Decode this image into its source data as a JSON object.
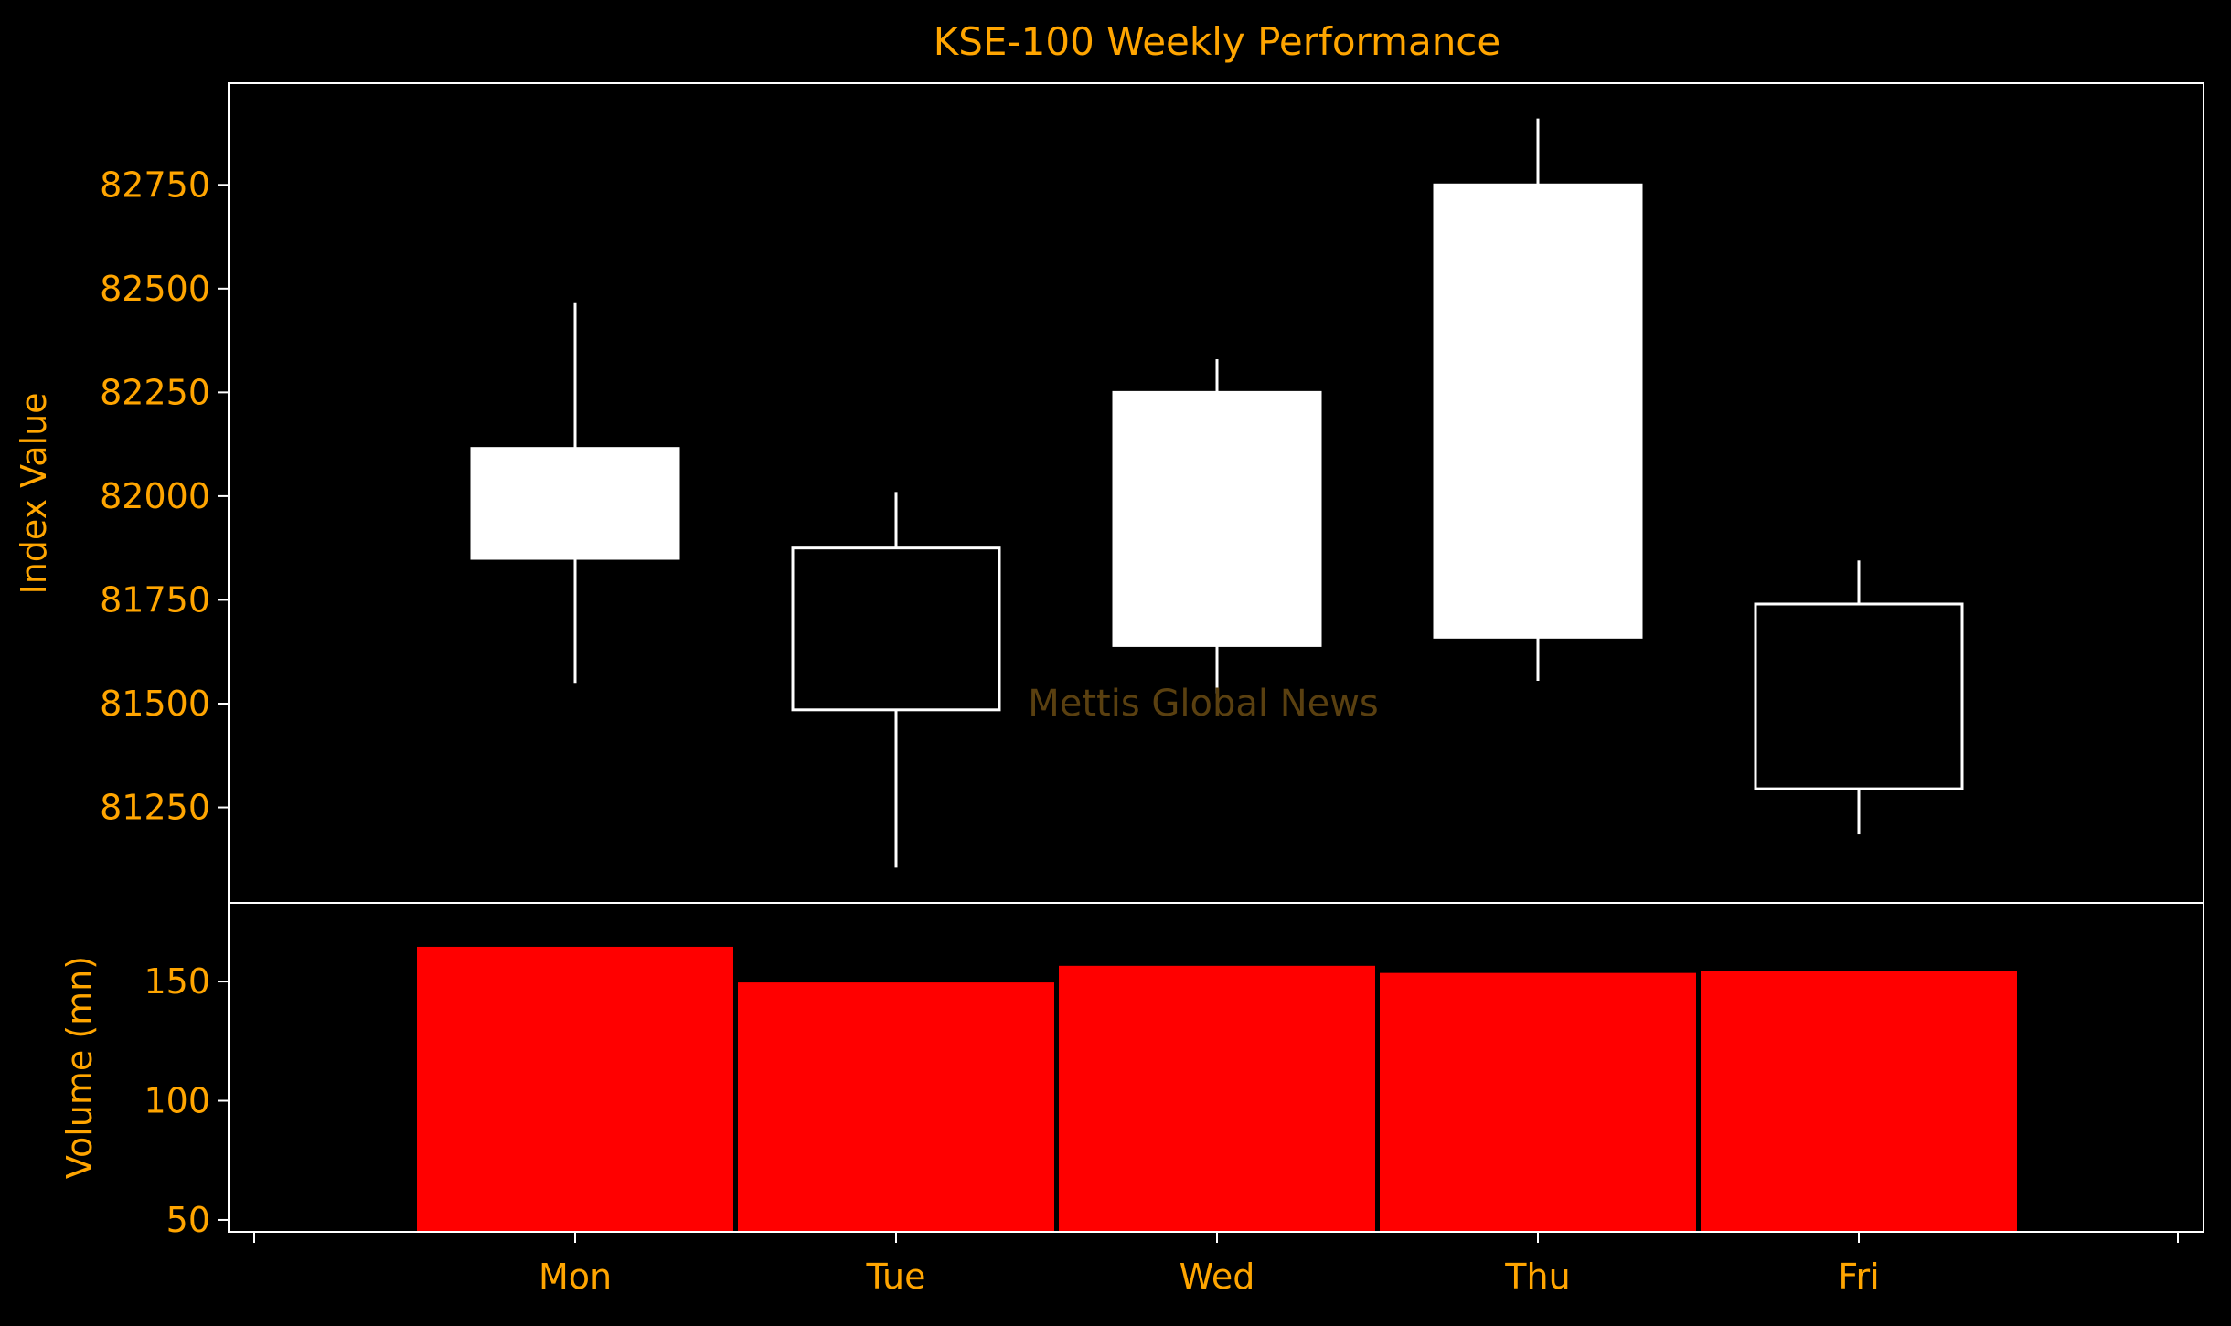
{
  "colors": {
    "background": "#000000",
    "text": "#FFA500",
    "frame": "#FFFFFF",
    "candle_outline": "#FFFFFF",
    "candle_fill_up": "#FFFFFF",
    "candle_fill_down": "#000000",
    "volume_bar": "#FF0000",
    "volume_edge": "#000000",
    "watermark": "#5a4010"
  },
  "chart_data": [
    {
      "type": "candlestick",
      "title": "KSE-100 Weekly Performance",
      "ylabel": "Index Value",
      "watermark": "Mettis Global News",
      "categories": [
        "Mon",
        "Tue",
        "Wed",
        "Thu",
        "Fri"
      ],
      "ohlc": [
        {
          "day": "Mon",
          "open": 81850,
          "high": 82465,
          "low": 81550,
          "close": 82115
        },
        {
          "day": "Tue",
          "open": 81875,
          "high": 82010,
          "low": 81105,
          "close": 81485
        },
        {
          "day": "Wed",
          "open": 81640,
          "high": 82330,
          "low": 81525,
          "close": 82250
        },
        {
          "day": "Thu",
          "open": 81660,
          "high": 82910,
          "low": 81555,
          "close": 82750
        },
        {
          "day": "Fri",
          "open": 81740,
          "high": 81845,
          "low": 81185,
          "close": 81295
        }
      ],
      "yticks": [
        81250,
        81500,
        81750,
        82000,
        82250,
        82500,
        82750
      ],
      "ylim": [
        81020,
        82995
      ],
      "grid": false
    },
    {
      "type": "bar",
      "ylabel": "Volume (mn)",
      "categories": [
        "Mon",
        "Tue",
        "Wed",
        "Thu",
        "Fri"
      ],
      "values": [
        165,
        150,
        157,
        154,
        155
      ],
      "yticks": [
        50,
        100,
        150
      ],
      "ylim": [
        45,
        183
      ],
      "grid": false
    }
  ]
}
